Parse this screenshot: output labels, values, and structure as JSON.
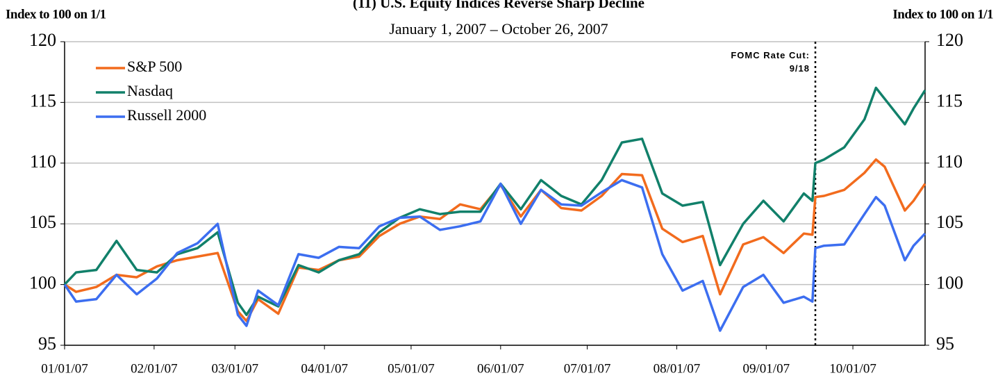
{
  "chart_data": {
    "type": "line",
    "title": "(11) U.S. Equity Indices Reverse Sharp Decline",
    "subtitle": "January 1, 2007 – October 26, 2007",
    "y_label": "Index to 100 on 1/1",
    "y2_label": "Index to 100 on 1/1",
    "x": [
      "01/01/07",
      "01/05/07",
      "01/12/07",
      "01/19/07",
      "01/26/07",
      "02/02/07",
      "02/09/07",
      "02/16/07",
      "02/23/07",
      "03/02/07",
      "03/05/07",
      "03/09/07",
      "03/16/07",
      "03/23/07",
      "03/30/07",
      "04/06/07",
      "04/13/07",
      "04/20/07",
      "04/27/07",
      "05/04/07",
      "05/11/07",
      "05/18/07",
      "05/25/07",
      "06/01/07",
      "06/08/07",
      "06/15/07",
      "06/22/07",
      "06/29/07",
      "07/06/07",
      "07/13/07",
      "07/20/07",
      "07/27/07",
      "08/03/07",
      "08/10/07",
      "08/16/07",
      "08/24/07",
      "08/31/07",
      "09/07/07",
      "09/14/07",
      "09/17/07",
      "09/18/07",
      "09/21/07",
      "09/28/07",
      "10/05/07",
      "10/09/07",
      "10/12/07",
      "10/19/07",
      "10/22/07",
      "10/26/07"
    ],
    "series": [
      {
        "name": "S&P 500",
        "color": "#f26b1d",
        "values": [
          100,
          99.4,
          99.8,
          100.8,
          100.6,
          101.5,
          102.0,
          102.3,
          102.6,
          97.8,
          97.0,
          98.8,
          97.6,
          101.4,
          101.2,
          102.0,
          102.3,
          104.0,
          105.0,
          105.6,
          105.4,
          106.6,
          106.2,
          108.2,
          105.6,
          107.8,
          106.3,
          106.1,
          107.3,
          109.1,
          109.0,
          104.6,
          103.5,
          104.0,
          99.2,
          103.3,
          103.9,
          102.6,
          104.2,
          104.1,
          107.2,
          107.3,
          107.8,
          109.2,
          110.3,
          109.7,
          106.1,
          106.9,
          108.3
        ]
      },
      {
        "name": "Nasdaq",
        "color": "#11806a",
        "values": [
          100,
          101.0,
          101.2,
          103.6,
          101.2,
          101.0,
          102.5,
          103.0,
          104.3,
          98.5,
          97.5,
          99.0,
          98.2,
          101.6,
          101.0,
          102.0,
          102.5,
          104.3,
          105.5,
          106.2,
          105.8,
          106.0,
          106.0,
          108.3,
          106.2,
          108.6,
          107.3,
          106.6,
          108.6,
          111.7,
          112.0,
          107.5,
          106.5,
          106.8,
          101.6,
          105.0,
          106.9,
          105.2,
          107.5,
          106.9,
          110.0,
          110.3,
          111.3,
          113.6,
          116.2,
          115.3,
          113.2,
          114.5,
          116.0
        ]
      },
      {
        "name": "Russell 2000",
        "color": "#3c6ef0",
        "values": [
          100,
          98.6,
          98.8,
          100.8,
          99.2,
          100.5,
          102.6,
          103.4,
          105.0,
          97.5,
          96.6,
          99.5,
          98.3,
          102.5,
          102.2,
          103.1,
          103.0,
          104.8,
          105.5,
          105.6,
          104.5,
          104.8,
          105.2,
          108.3,
          105.0,
          107.8,
          106.6,
          106.5,
          107.6,
          108.6,
          108.0,
          102.5,
          99.5,
          100.3,
          96.2,
          99.8,
          100.8,
          98.5,
          99.0,
          98.6,
          103.0,
          103.2,
          103.3,
          105.8,
          107.2,
          106.5,
          102.0,
          103.2,
          104.2
        ]
      }
    ],
    "xlim": [
      "01/01/07",
      "10/26/07"
    ],
    "xticks": [
      "01/01/07",
      "02/01/07",
      "03/01/07",
      "04/01/07",
      "05/01/07",
      "06/01/07",
      "07/01/07",
      "08/01/07",
      "09/01/07",
      "10/01/07"
    ],
    "ylim": [
      95,
      120
    ],
    "yticks": [
      95,
      100,
      105,
      110,
      115,
      120
    ],
    "grid": true,
    "legend": "upper left",
    "annotation": {
      "text": "FOMC Rate Cut: 9/18",
      "x": "09/18/07"
    }
  }
}
